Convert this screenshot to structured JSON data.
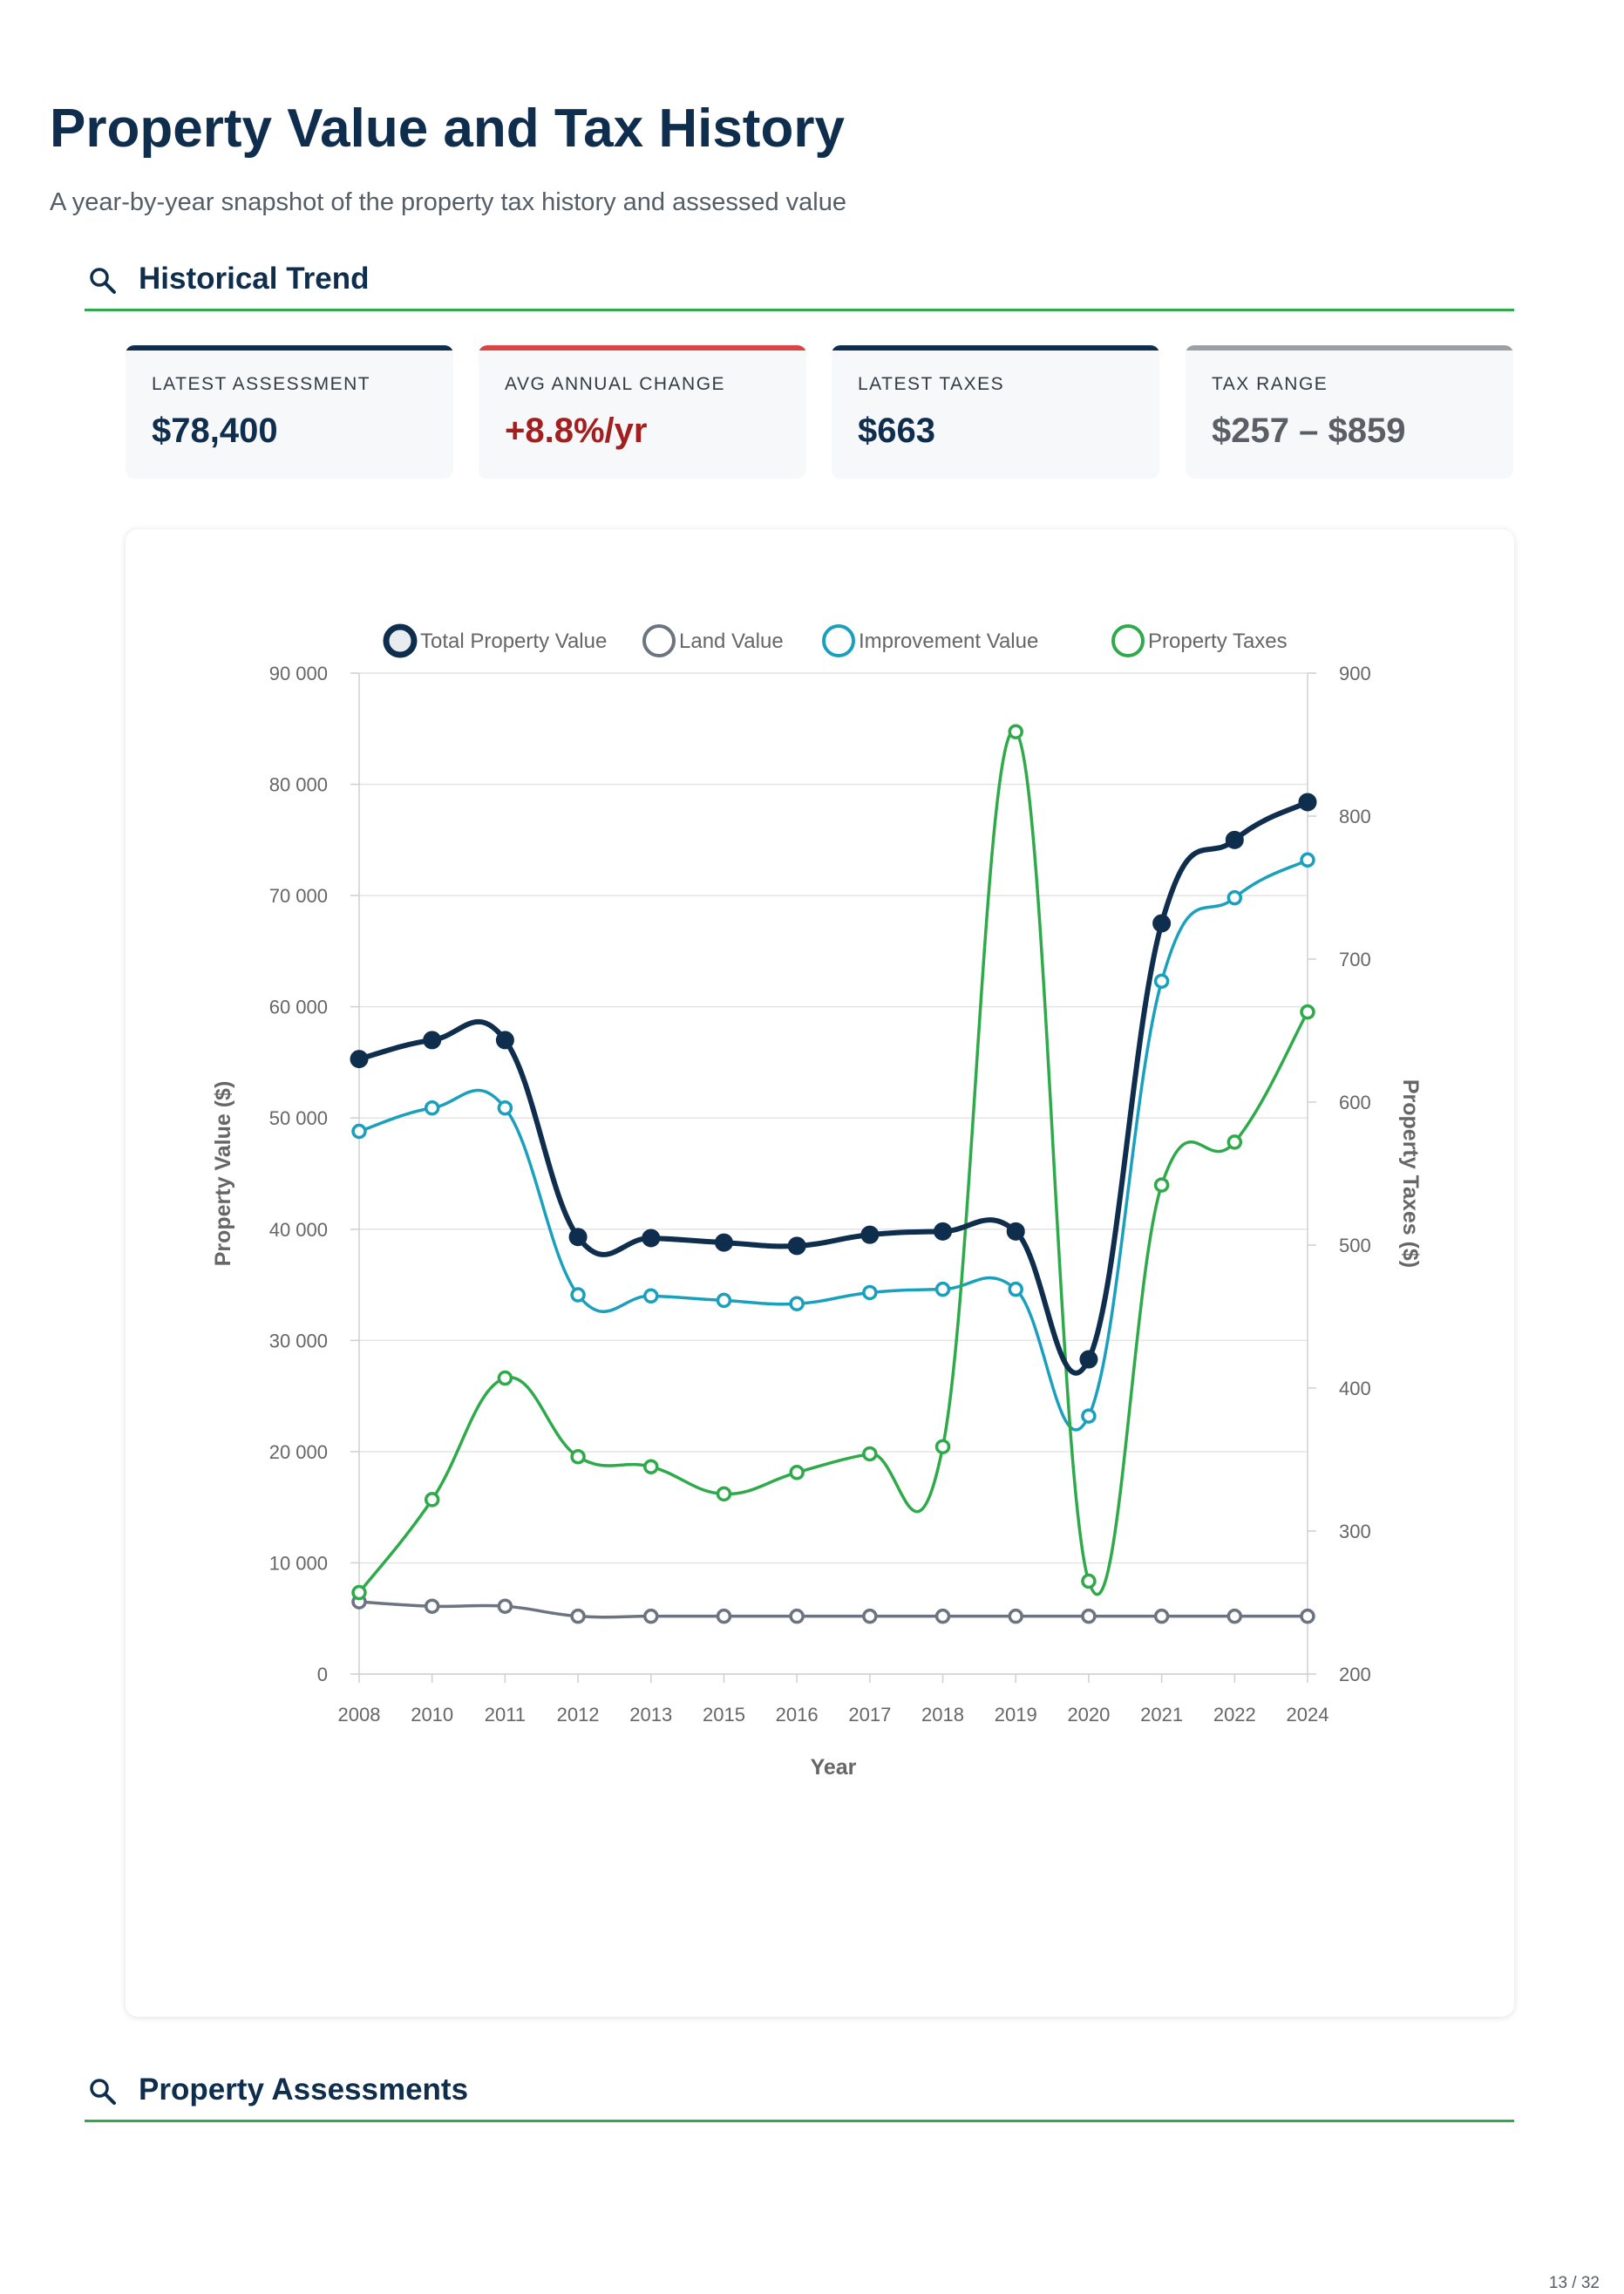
{
  "header": {
    "title": "Property Value and Tax History",
    "subtitle": "A year-by-year snapshot of the property tax history and assessed value"
  },
  "sections": [
    {
      "title": "Historical Trend",
      "icon": "search-icon"
    },
    {
      "title": "Property Assessments",
      "icon": "search-icon"
    }
  ],
  "stats": [
    {
      "label": "LATEST ASSESSMENT",
      "value": "$78,400",
      "accent": "#0f2e4e",
      "value_color": "#0f2e4e"
    },
    {
      "label": "AVG ANNUAL CHANGE",
      "value": "+8.8%/yr",
      "accent": "#d94545",
      "value_color": "#a31f1f"
    },
    {
      "label": "LATEST TAXES",
      "value": "$663",
      "accent": "#0f2e4e",
      "value_color": "#0f2e4e"
    },
    {
      "label": "TAX RANGE",
      "value": "$257 – $859",
      "accent": "#9aa0a6",
      "value_color": "#5a5f66"
    }
  ],
  "chart_data": {
    "type": "line",
    "title": "",
    "xlabel": "Year",
    "ylabel": "Property Value ($)",
    "y2label": "Property Taxes ($)",
    "categories": [
      "2008",
      "2010",
      "2011",
      "2012",
      "2013",
      "2015",
      "2016",
      "2017",
      "2018",
      "2019",
      "2020",
      "2021",
      "2022",
      "2024"
    ],
    "ylim": [
      0,
      90000
    ],
    "y2lim": [
      200,
      900
    ],
    "y_ticks": [
      0,
      10000,
      20000,
      30000,
      40000,
      50000,
      60000,
      70000,
      80000,
      90000
    ],
    "y_tick_labels": [
      "0",
      "10 000",
      "20 000",
      "30 000",
      "40 000",
      "50 000",
      "60 000",
      "70 000",
      "80 000",
      "90 000"
    ],
    "y2_ticks": [
      200,
      300,
      400,
      500,
      600,
      700,
      800,
      900
    ],
    "grid": true,
    "legend_position": "top",
    "series": [
      {
        "name": "Total Property Value",
        "axis": "left",
        "color": "#0f2e4e",
        "values": [
          55300,
          57000,
          57000,
          39300,
          39200,
          38800,
          38500,
          39500,
          39800,
          39800,
          28300,
          67500,
          75000,
          78400
        ]
      },
      {
        "name": "Land Value",
        "axis": "left",
        "color": "#6b7480",
        "values": [
          6500,
          6100,
          6100,
          5200,
          5200,
          5200,
          5200,
          5200,
          5200,
          5200,
          5200,
          5200,
          5200,
          5200
        ]
      },
      {
        "name": "Improvement Value",
        "axis": "left",
        "color": "#1aa0bd",
        "values": [
          48800,
          50900,
          50900,
          34100,
          34000,
          33600,
          33300,
          34300,
          34600,
          34600,
          23200,
          62300,
          69800,
          73200
        ]
      },
      {
        "name": "Property Taxes",
        "axis": "right",
        "color": "#2eaa4a",
        "values": [
          257,
          322,
          407,
          352,
          345,
          326,
          341,
          354,
          359,
          859,
          265,
          542,
          572,
          663
        ]
      }
    ]
  },
  "footer": {
    "page_number": "13 / 32"
  }
}
